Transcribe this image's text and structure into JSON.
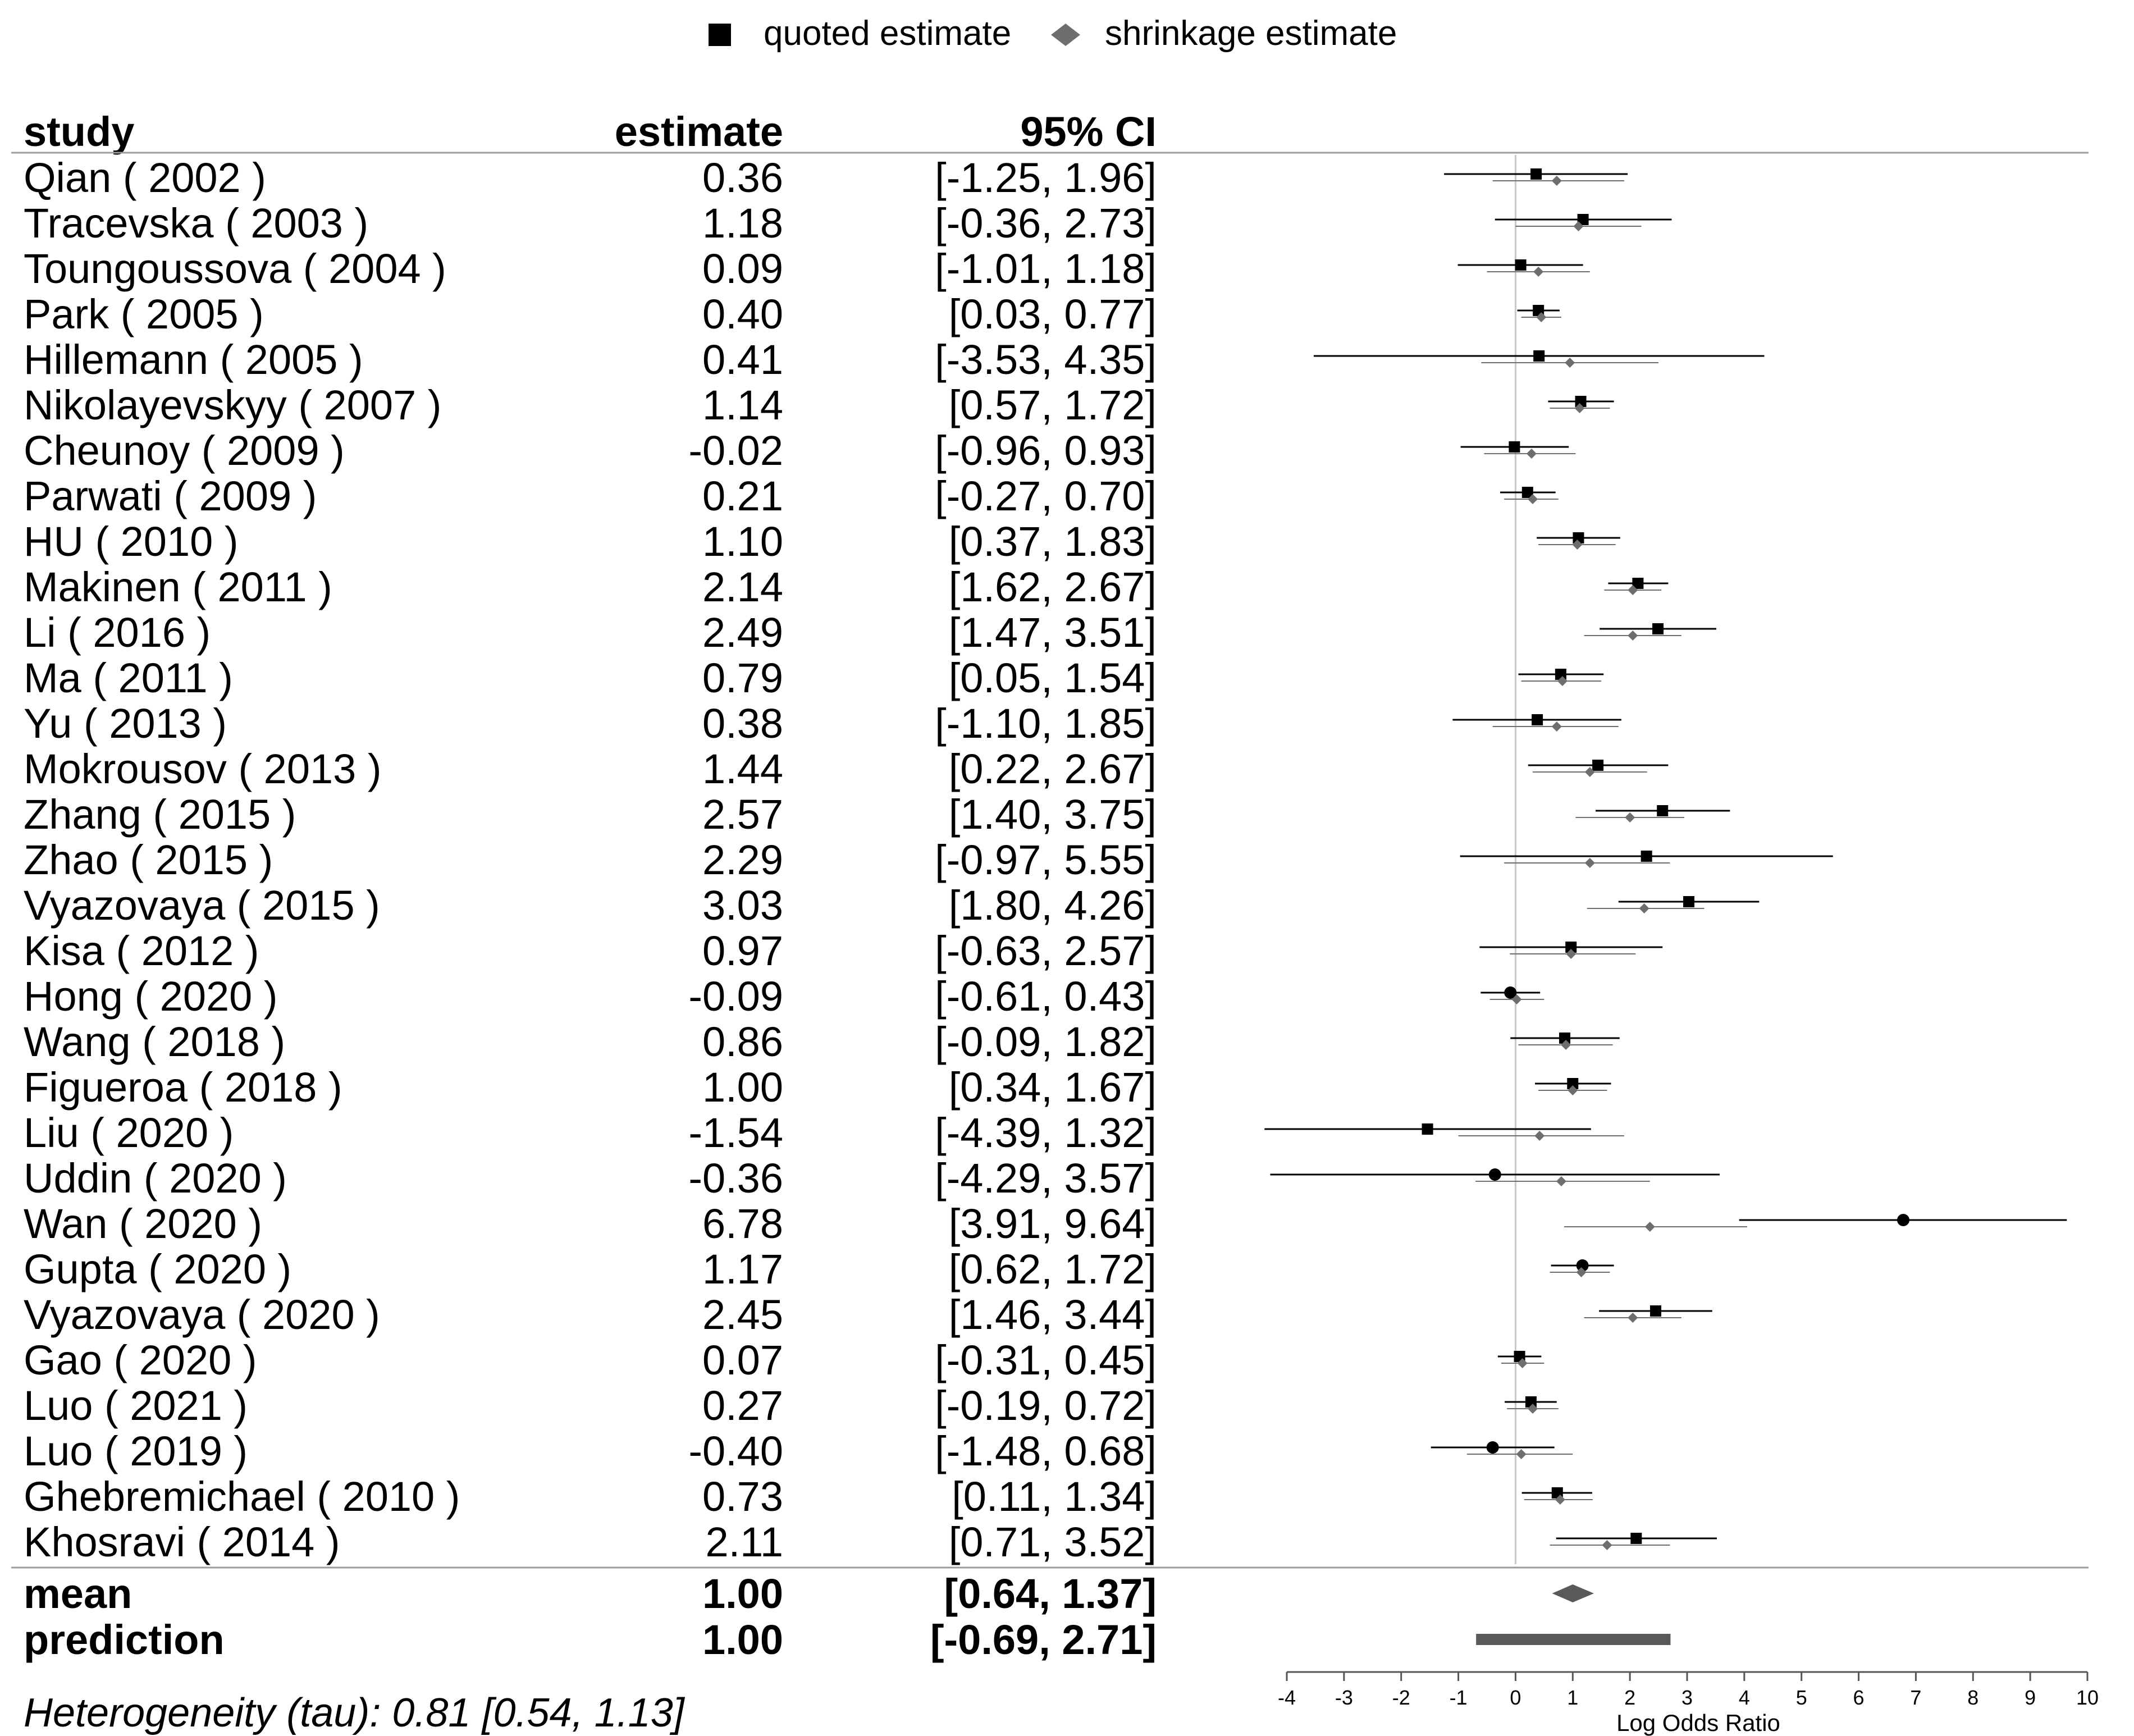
{
  "legend": {
    "quoted_label": "quoted estimate",
    "shrinkage_label": "shrinkage estimate"
  },
  "headers": {
    "study": "study",
    "estimate": "estimate",
    "ci": "95% CI"
  },
  "colors": {
    "quoted": "#000000",
    "shrinkage": "#6e6e6e",
    "zero_line": "#c8c8c8",
    "summary": "#595959",
    "separator": "#9a9a9a"
  },
  "chart_data": {
    "type": "forest",
    "xlabel": "Log Odds Ratio",
    "xlim": [
      -4,
      10
    ],
    "ticks": [
      -4,
      -3,
      -2,
      -1,
      0,
      1,
      2,
      3,
      4,
      5,
      6,
      7,
      8,
      9,
      10
    ],
    "reference_line": 0,
    "studies": [
      {
        "label": "Qian ( 2002 )",
        "estimate_text": "0.36",
        "ci_text": "[-1.25, 1.96]",
        "est": 0.36,
        "lo": -1.25,
        "hi": 1.96,
        "shr": 0.72,
        "shr_lo": -0.4,
        "shr_hi": 1.9,
        "marker": "square"
      },
      {
        "label": "Tracevska ( 2003 )",
        "estimate_text": "1.18",
        "ci_text": "[-0.36, 2.73]",
        "est": 1.18,
        "lo": -0.36,
        "hi": 2.73,
        "shr": 1.1,
        "shr_lo": 0.0,
        "shr_hi": 2.2,
        "marker": "square"
      },
      {
        "label": "Toungoussova ( 2004 )",
        "estimate_text": "0.09",
        "ci_text": "[-1.01, 1.18]",
        "est": 0.09,
        "lo": -1.01,
        "hi": 1.18,
        "shr": 0.4,
        "shr_lo": -0.5,
        "shr_hi": 1.3,
        "marker": "square"
      },
      {
        "label": "Park ( 2005 )",
        "estimate_text": "0.40",
        "ci_text": "[0.03, 0.77]",
        "est": 0.4,
        "lo": 0.03,
        "hi": 0.77,
        "shr": 0.45,
        "shr_lo": 0.1,
        "shr_hi": 0.8,
        "marker": "square"
      },
      {
        "label": "Hillemann ( 2005 )",
        "estimate_text": "0.41",
        "ci_text": "[-3.53, 4.35]",
        "est": 0.41,
        "lo": -3.53,
        "hi": 4.35,
        "shr": 0.95,
        "shr_lo": -0.6,
        "shr_hi": 2.5,
        "marker": "square"
      },
      {
        "label": "Nikolayevskyy ( 2007 )",
        "estimate_text": "1.14",
        "ci_text": "[0.57, 1.72]",
        "est": 1.14,
        "lo": 0.57,
        "hi": 1.72,
        "shr": 1.12,
        "shr_lo": 0.6,
        "shr_hi": 1.65,
        "marker": "square"
      },
      {
        "label": "Cheunoy ( 2009 )",
        "estimate_text": "-0.02",
        "ci_text": "[-0.96, 0.93]",
        "est": -0.02,
        "lo": -0.96,
        "hi": 0.93,
        "shr": 0.28,
        "shr_lo": -0.55,
        "shr_hi": 1.05,
        "marker": "square"
      },
      {
        "label": "Parwati ( 2009 )",
        "estimate_text": "0.21",
        "ci_text": "[-0.27, 0.70]",
        "est": 0.21,
        "lo": -0.27,
        "hi": 0.7,
        "shr": 0.3,
        "shr_lo": -0.2,
        "shr_hi": 0.75,
        "marker": "square"
      },
      {
        "label": "HU ( 2010 )",
        "estimate_text": "1.10",
        "ci_text": "[0.37, 1.83]",
        "est": 1.1,
        "lo": 0.37,
        "hi": 1.83,
        "shr": 1.08,
        "shr_lo": 0.4,
        "shr_hi": 1.75,
        "marker": "square"
      },
      {
        "label": "Makinen ( 2011 )",
        "estimate_text": "2.14",
        "ci_text": "[1.62, 2.67]",
        "est": 2.14,
        "lo": 1.62,
        "hi": 2.67,
        "shr": 2.05,
        "shr_lo": 1.55,
        "shr_hi": 2.55,
        "marker": "square"
      },
      {
        "label": "Li ( 2016 )",
        "estimate_text": "2.49",
        "ci_text": "[1.47, 3.51]",
        "est": 2.49,
        "lo": 1.47,
        "hi": 3.51,
        "shr": 2.05,
        "shr_lo": 1.2,
        "shr_hi": 2.9,
        "marker": "square"
      },
      {
        "label": "Ma ( 2011 )",
        "estimate_text": "0.79",
        "ci_text": "[0.05, 1.54]",
        "est": 0.79,
        "lo": 0.05,
        "hi": 1.54,
        "shr": 0.82,
        "shr_lo": 0.1,
        "shr_hi": 1.5,
        "marker": "square"
      },
      {
        "label": "Yu ( 2013 )",
        "estimate_text": "0.38",
        "ci_text": "[-1.10, 1.85]",
        "est": 0.38,
        "lo": -1.1,
        "hi": 1.85,
        "shr": 0.72,
        "shr_lo": -0.4,
        "shr_hi": 1.8,
        "marker": "square"
      },
      {
        "label": "Mokrousov ( 2013 )",
        "estimate_text": "1.44",
        "ci_text": "[0.22, 2.67]",
        "est": 1.44,
        "lo": 0.22,
        "hi": 2.67,
        "shr": 1.3,
        "shr_lo": 0.3,
        "shr_hi": 2.3,
        "marker": "square"
      },
      {
        "label": "Zhang ( 2015 )",
        "estimate_text": "2.57",
        "ci_text": "[1.40, 3.75]",
        "est": 2.57,
        "lo": 1.4,
        "hi": 3.75,
        "shr": 2.0,
        "shr_lo": 1.05,
        "shr_hi": 2.95,
        "marker": "square"
      },
      {
        "label": "Zhao ( 2015 )",
        "estimate_text": "2.29",
        "ci_text": "[-0.97, 5.55]",
        "est": 2.29,
        "lo": -0.97,
        "hi": 5.55,
        "shr": 1.3,
        "shr_lo": -0.2,
        "shr_hi": 2.7,
        "marker": "square"
      },
      {
        "label": "Vyazovaya ( 2015 )",
        "estimate_text": "3.03",
        "ci_text": "[1.80, 4.26]",
        "est": 3.03,
        "lo": 1.8,
        "hi": 4.26,
        "shr": 2.25,
        "shr_lo": 1.25,
        "shr_hi": 3.3,
        "marker": "square"
      },
      {
        "label": "Kisa ( 2012 )",
        "estimate_text": "0.97",
        "ci_text": "[-0.63, 2.57]",
        "est": 0.97,
        "lo": -0.63,
        "hi": 2.57,
        "shr": 0.97,
        "shr_lo": -0.1,
        "shr_hi": 2.1,
        "marker": "square"
      },
      {
        "label": "Hong ( 2020 )",
        "estimate_text": "-0.09",
        "ci_text": "[-0.61, 0.43]",
        "est": -0.09,
        "lo": -0.61,
        "hi": 0.43,
        "shr": 0.02,
        "shr_lo": -0.45,
        "shr_hi": 0.5,
        "marker": "circle"
      },
      {
        "label": "Wang ( 2018 )",
        "estimate_text": "0.86",
        "ci_text": "[-0.09, 1.82]",
        "est": 0.86,
        "lo": -0.09,
        "hi": 1.82,
        "shr": 0.88,
        "shr_lo": 0.05,
        "shr_hi": 1.7,
        "marker": "square"
      },
      {
        "label": "Figueroa ( 2018 )",
        "estimate_text": "1.00",
        "ci_text": "[0.34, 1.67]",
        "est": 1.0,
        "lo": 0.34,
        "hi": 1.67,
        "shr": 1.0,
        "shr_lo": 0.4,
        "shr_hi": 1.6,
        "marker": "square"
      },
      {
        "label": "Liu ( 2020 )",
        "estimate_text": "-1.54",
        "ci_text": "[-4.39, 1.32]",
        "est": -1.54,
        "lo": -4.39,
        "hi": 1.32,
        "shr": 0.42,
        "shr_lo": -1.0,
        "shr_hi": 1.9,
        "marker": "square"
      },
      {
        "label": "Uddin ( 2020 )",
        "estimate_text": "-0.36",
        "ci_text": "[-4.29, 3.57]",
        "est": -0.36,
        "lo": -4.29,
        "hi": 3.57,
        "shr": 0.8,
        "shr_lo": -0.7,
        "shr_hi": 2.35,
        "marker": "circle"
      },
      {
        "label": "Wan ( 2020 )",
        "estimate_text": "6.78",
        "ci_text": "[3.91, 9.64]",
        "est": 6.78,
        "lo": 3.91,
        "hi": 9.64,
        "shr": 2.35,
        "shr_lo": 0.85,
        "shr_hi": 4.05,
        "marker": "circle"
      },
      {
        "label": "Gupta ( 2020 )",
        "estimate_text": "1.17",
        "ci_text": "[0.62, 1.72]",
        "est": 1.17,
        "lo": 0.62,
        "hi": 1.72,
        "shr": 1.15,
        "shr_lo": 0.6,
        "shr_hi": 1.65,
        "marker": "circle"
      },
      {
        "label": "Vyazovaya ( 2020 )",
        "estimate_text": "2.45",
        "ci_text": "[1.46, 3.44]",
        "est": 2.45,
        "lo": 1.46,
        "hi": 3.44,
        "shr": 2.05,
        "shr_lo": 1.2,
        "shr_hi": 2.9,
        "marker": "square"
      },
      {
        "label": "Gao ( 2020 )",
        "estimate_text": "0.07",
        "ci_text": "[-0.31, 0.45]",
        "est": 0.07,
        "lo": -0.31,
        "hi": 0.45,
        "shr": 0.12,
        "shr_lo": -0.25,
        "shr_hi": 0.5,
        "marker": "square"
      },
      {
        "label": "Luo ( 2021 )",
        "estimate_text": "0.27",
        "ci_text": "[-0.19, 0.72]",
        "est": 0.27,
        "lo": -0.19,
        "hi": 0.72,
        "shr": 0.3,
        "shr_lo": -0.15,
        "shr_hi": 0.75,
        "marker": "square"
      },
      {
        "label": "Luo ( 2019 )",
        "estimate_text": "-0.40",
        "ci_text": "[-1.48, 0.68]",
        "est": -0.4,
        "lo": -1.48,
        "hi": 0.68,
        "shr": 0.1,
        "shr_lo": -0.85,
        "shr_hi": 1.0,
        "marker": "circle"
      },
      {
        "label": "Ghebremichael ( 2010 )",
        "estimate_text": "0.73",
        "ci_text": "[0.11, 1.34]",
        "est": 0.73,
        "lo": 0.11,
        "hi": 1.34,
        "shr": 0.78,
        "shr_lo": 0.15,
        "shr_hi": 1.35,
        "marker": "square"
      },
      {
        "label": "Khosravi ( 2014 )",
        "estimate_text": "2.11",
        "ci_text": "[0.71, 3.52]",
        "est": 2.11,
        "lo": 0.71,
        "hi": 3.52,
        "shr": 1.6,
        "shr_lo": 0.6,
        "shr_hi": 2.7,
        "marker": "square"
      }
    ],
    "summary": [
      {
        "label": "mean",
        "estimate_text": "1.00",
        "ci_text": "[0.64, 1.37]",
        "est": 1.0,
        "lo": 0.64,
        "hi": 1.37,
        "shape": "diamond"
      },
      {
        "label": "prediction",
        "estimate_text": "1.00",
        "ci_text": "[-0.69, 2.71]",
        "est": 1.0,
        "lo": -0.69,
        "hi": 2.71,
        "shape": "bar"
      }
    ]
  },
  "footnote": "Heterogeneity (tau): 0.81 [0.54, 1.13]"
}
